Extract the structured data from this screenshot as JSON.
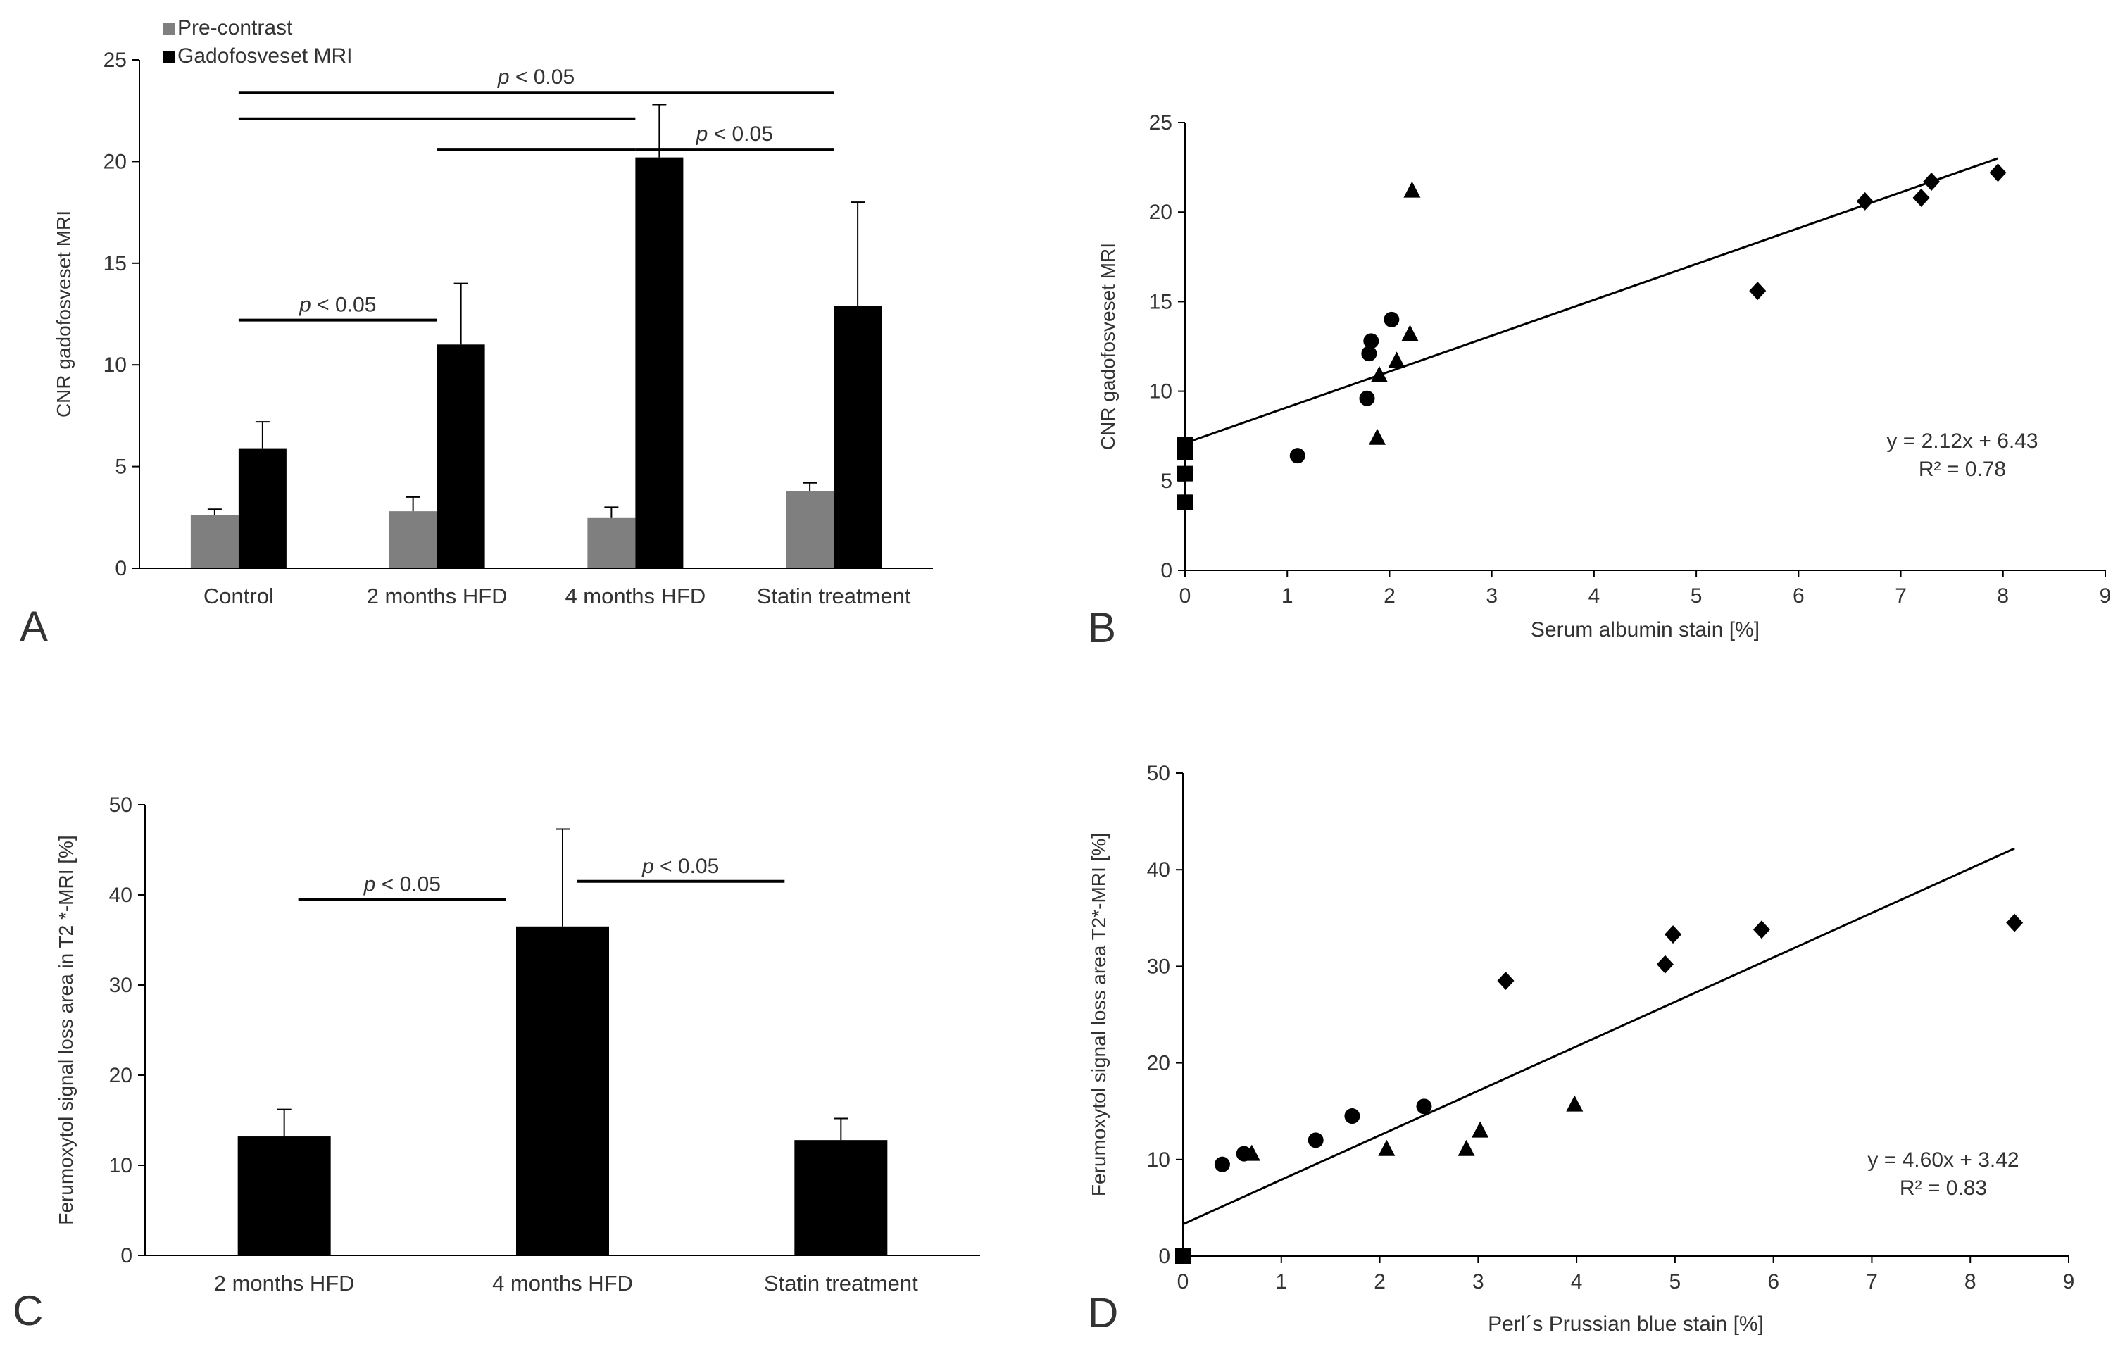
{
  "chart_data": [
    {
      "panel_label": "A",
      "type": "bar",
      "ylabel": "CNR gadofosveset MRI",
      "ylim": [
        0,
        25
      ],
      "yticks": [
        0,
        5,
        10,
        15,
        20,
        25
      ],
      "categories": [
        "Control",
        "2 months HFD",
        "4 months HFD",
        "Statin treatment"
      ],
      "legend": {
        "placement": "top-left"
      },
      "series": [
        {
          "name": "Pre-contrast",
          "color": "#7f7f7f",
          "values": [
            2.6,
            2.8,
            2.5,
            3.8
          ],
          "errors": [
            0.3,
            0.7,
            0.5,
            0.4
          ]
        },
        {
          "name": "Gadofosveset MRI",
          "color": "#000000",
          "values": [
            5.9,
            11.0,
            20.2,
            12.9
          ],
          "errors": [
            1.3,
            3.0,
            2.6,
            5.1
          ]
        }
      ],
      "annotations": [
        {
          "text": "p < 0.05",
          "from": "Control",
          "to": "Statin treatment",
          "y": 23.4,
          "labeled": true
        },
        {
          "text": "",
          "from": "Control",
          "to": "4 months HFD",
          "y": 22.1,
          "labeled": false
        },
        {
          "text": "",
          "from": "2 months HFD",
          "to": "4 months HFD",
          "y": 20.6,
          "labeled": false
        },
        {
          "text": "p < 0.05",
          "from": "4 months HFD",
          "to": "Statin treatment",
          "y": 20.6,
          "labeled": true
        },
        {
          "text": "p < 0.05",
          "from": "Control",
          "to": "2 months HFD",
          "y": 12.2,
          "labeled": true
        }
      ]
    },
    {
      "panel_label": "B",
      "type": "scatter",
      "xlabel": "Serum albumin stain [%]",
      "ylabel": "CNR gadofosveset MRI",
      "xlim": [
        0,
        9
      ],
      "ylim": [
        0,
        25
      ],
      "xticks": [
        0,
        1,
        2,
        3,
        4,
        5,
        6,
        7,
        8,
        9
      ],
      "yticks": [
        0,
        5,
        10,
        15,
        20,
        25
      ],
      "series": [
        {
          "marker": "square",
          "x": [
            0,
            0,
            0,
            0
          ],
          "y": [
            3.8,
            5.4,
            6.6,
            7.0
          ]
        },
        {
          "marker": "circle",
          "x": [
            1.1,
            1.78,
            1.8,
            1.82,
            2.02
          ],
          "y": [
            6.4,
            9.6,
            12.1,
            12.8,
            14.0
          ]
        },
        {
          "marker": "triangle",
          "x": [
            1.88,
            1.9,
            2.07,
            2.2,
            2.22
          ],
          "y": [
            7.4,
            10.9,
            11.7,
            13.2,
            21.2
          ]
        },
        {
          "marker": "diamond",
          "x": [
            5.6,
            6.65,
            7.2,
            7.3,
            7.95
          ],
          "y": [
            15.6,
            20.6,
            20.8,
            21.7,
            22.2
          ]
        }
      ],
      "trendline": {
        "x": [
          0,
          7.95
        ],
        "y": [
          7.1,
          23.0
        ]
      },
      "equation": "y = 2.12x  + 6.43",
      "r2": "R² = 0.78"
    },
    {
      "panel_label": "C",
      "type": "bar",
      "ylabel": "Ferumoxytol  signal loss area in T2 *-MRI [%]",
      "ylim": [
        0,
        50
      ],
      "yticks": [
        0,
        10,
        20,
        30,
        40,
        50
      ],
      "categories": [
        "2 months HFD",
        "4 months HFD",
        "Statin treatment"
      ],
      "series": [
        {
          "color": "#000000",
          "values": [
            13.2,
            36.5,
            12.8
          ],
          "errors": [
            3.0,
            10.8,
            2.4
          ]
        }
      ],
      "annotations": [
        {
          "text": "p < 0.05",
          "from": "2 months HFD",
          "to": "4 months HFD",
          "y": 39.5
        },
        {
          "text": "p < 0.05",
          "from": "4 months HFD",
          "to": "Statin treatment",
          "y": 41.5
        }
      ]
    },
    {
      "panel_label": "D",
      "type": "scatter",
      "xlabel": "Perl´s Prussian blue stain [%]",
      "ylabel": "Ferumoxytol signal loss area T2*-MRI [%]",
      "xlim": [
        0,
        9
      ],
      "ylim": [
        0,
        50
      ],
      "xticks": [
        0,
        1,
        2,
        3,
        4,
        5,
        6,
        7,
        8,
        9
      ],
      "yticks": [
        0,
        10,
        20,
        30,
        40,
        50
      ],
      "series": [
        {
          "marker": "square",
          "x": [
            0
          ],
          "y": [
            0
          ]
        },
        {
          "marker": "circle",
          "x": [
            0.4,
            0.62,
            1.35,
            1.72,
            2.45
          ],
          "y": [
            9.5,
            10.6,
            12.0,
            14.5,
            15.5
          ]
        },
        {
          "marker": "triangle",
          "x": [
            0.7,
            2.07,
            2.88,
            3.02,
            3.98
          ],
          "y": [
            10.6,
            11.1,
            11.1,
            13.0,
            15.7
          ]
        },
        {
          "marker": "diamond",
          "x": [
            3.28,
            4.9,
            4.98,
            5.88,
            8.45
          ],
          "y": [
            28.5,
            30.2,
            33.3,
            33.8,
            34.5
          ]
        }
      ],
      "trendline": {
        "x": [
          0,
          8.45
        ],
        "y": [
          3.3,
          42.2
        ]
      },
      "equation": "y = 4.60x  + 3.42",
      "r2": "R² = 0.83"
    }
  ]
}
